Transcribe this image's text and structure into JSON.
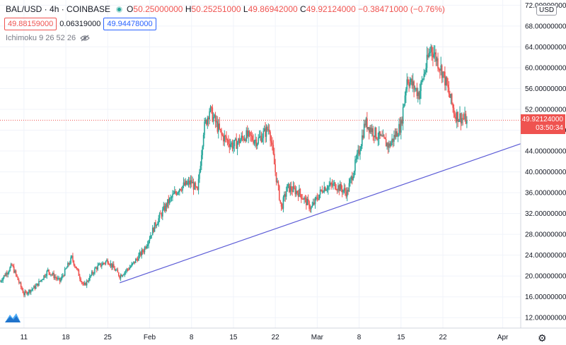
{
  "legend": {
    "symbol": "BAL/USD · 4h · COINBASE",
    "open_label": "O",
    "open": "50.25000000",
    "high_label": "H",
    "high": "50.25251000",
    "low_label": "L",
    "low": "49.86942000",
    "close_label": "C",
    "close": "49.92124000",
    "change": "−0.38471000 (−0.76%)"
  },
  "quote": {
    "bid": "49.88159000",
    "spread": "0.06319000",
    "ask": "49.94478000"
  },
  "indicator": {
    "label": "Ichimoku 9 26 52 26",
    "icon": "eye-icon"
  },
  "price_axis": {
    "currency": "USD",
    "ticks": [
      "72.00000000",
      "68.00000000",
      "64.00000000",
      "60.00000000",
      "56.00000000",
      "52.00000000",
      "48.00000000",
      "44.00000000",
      "40.00000000",
      "36.00000000",
      "32.00000000",
      "28.00000000",
      "24.00000000",
      "20.00000000",
      "16.00000000",
      "12.00000000"
    ],
    "last_price": "49.92124000",
    "countdown": "03:50:34"
  },
  "time_axis": {
    "ticks": [
      "11",
      "18",
      "25",
      "Feb",
      "8",
      "15",
      "22",
      "Mar",
      "8",
      "15",
      "22",
      "Apr"
    ]
  },
  "colors": {
    "up": "#26a69a",
    "down": "#ef5350",
    "trendline": "#5b5bd6",
    "grid": "#f0f3fa"
  },
  "icons": {
    "logo": "tradingview-logo",
    "settings": "gear-icon"
  },
  "chart_data": {
    "type": "candlestick",
    "symbol": "BAL/USD",
    "interval": "4h",
    "y_range": [
      10,
      73
    ],
    "x_range": [
      "2021-01-07",
      "2021-04-04"
    ],
    "anchors": [
      {
        "date": "2021-01-07",
        "price": 19.0
      },
      {
        "date": "2021-01-09",
        "price": 22.0
      },
      {
        "date": "2021-01-11",
        "price": 16.5
      },
      {
        "date": "2021-01-13",
        "price": 18.0
      },
      {
        "date": "2021-01-15",
        "price": 21.0
      },
      {
        "date": "2021-01-17",
        "price": 19.0
      },
      {
        "date": "2021-01-19",
        "price": 23.5
      },
      {
        "date": "2021-01-21",
        "price": 18.0
      },
      {
        "date": "2021-01-23",
        "price": 21.5
      },
      {
        "date": "2021-01-25",
        "price": 23.0
      },
      {
        "date": "2021-01-27",
        "price": 20.0
      },
      {
        "date": "2021-01-29",
        "price": 22.0
      },
      {
        "date": "2021-01-31",
        "price": 25.0
      },
      {
        "date": "2021-02-02",
        "price": 30.0
      },
      {
        "date": "2021-02-04",
        "price": 34.0
      },
      {
        "date": "2021-02-06",
        "price": 37.0
      },
      {
        "date": "2021-02-08",
        "price": 38.0
      },
      {
        "date": "2021-02-09",
        "price": 36.0
      },
      {
        "date": "2021-02-10",
        "price": 48.0
      },
      {
        "date": "2021-02-11",
        "price": 52.0
      },
      {
        "date": "2021-02-13",
        "price": 47.0
      },
      {
        "date": "2021-02-15",
        "price": 45.0
      },
      {
        "date": "2021-02-17",
        "price": 47.0
      },
      {
        "date": "2021-02-19",
        "price": 46.0
      },
      {
        "date": "2021-02-21",
        "price": 48.5
      },
      {
        "date": "2021-02-22",
        "price": 40.0
      },
      {
        "date": "2021-02-23",
        "price": 33.0
      },
      {
        "date": "2021-02-24",
        "price": 37.0
      },
      {
        "date": "2021-02-26",
        "price": 36.0
      },
      {
        "date": "2021-02-28",
        "price": 33.0
      },
      {
        "date": "2021-03-02",
        "price": 37.0
      },
      {
        "date": "2021-03-04",
        "price": 37.5
      },
      {
        "date": "2021-03-06",
        "price": 36.0
      },
      {
        "date": "2021-03-08",
        "price": 44.0
      },
      {
        "date": "2021-03-09",
        "price": 49.5
      },
      {
        "date": "2021-03-11",
        "price": 47.0
      },
      {
        "date": "2021-03-13",
        "price": 45.0
      },
      {
        "date": "2021-03-15",
        "price": 49.0
      },
      {
        "date": "2021-03-16",
        "price": 58.0
      },
      {
        "date": "2021-03-18",
        "price": 55.0
      },
      {
        "date": "2021-03-20",
        "price": 64.0
      },
      {
        "date": "2021-03-22",
        "price": 59.0
      },
      {
        "date": "2021-03-24",
        "price": 51.0
      },
      {
        "date": "2021-03-26",
        "price": 49.9
      }
    ],
    "trendline": [
      {
        "date": "2021-01-27",
        "price": 18.7
      },
      {
        "date": "2021-04-04",
        "price": 45.4
      }
    ]
  }
}
